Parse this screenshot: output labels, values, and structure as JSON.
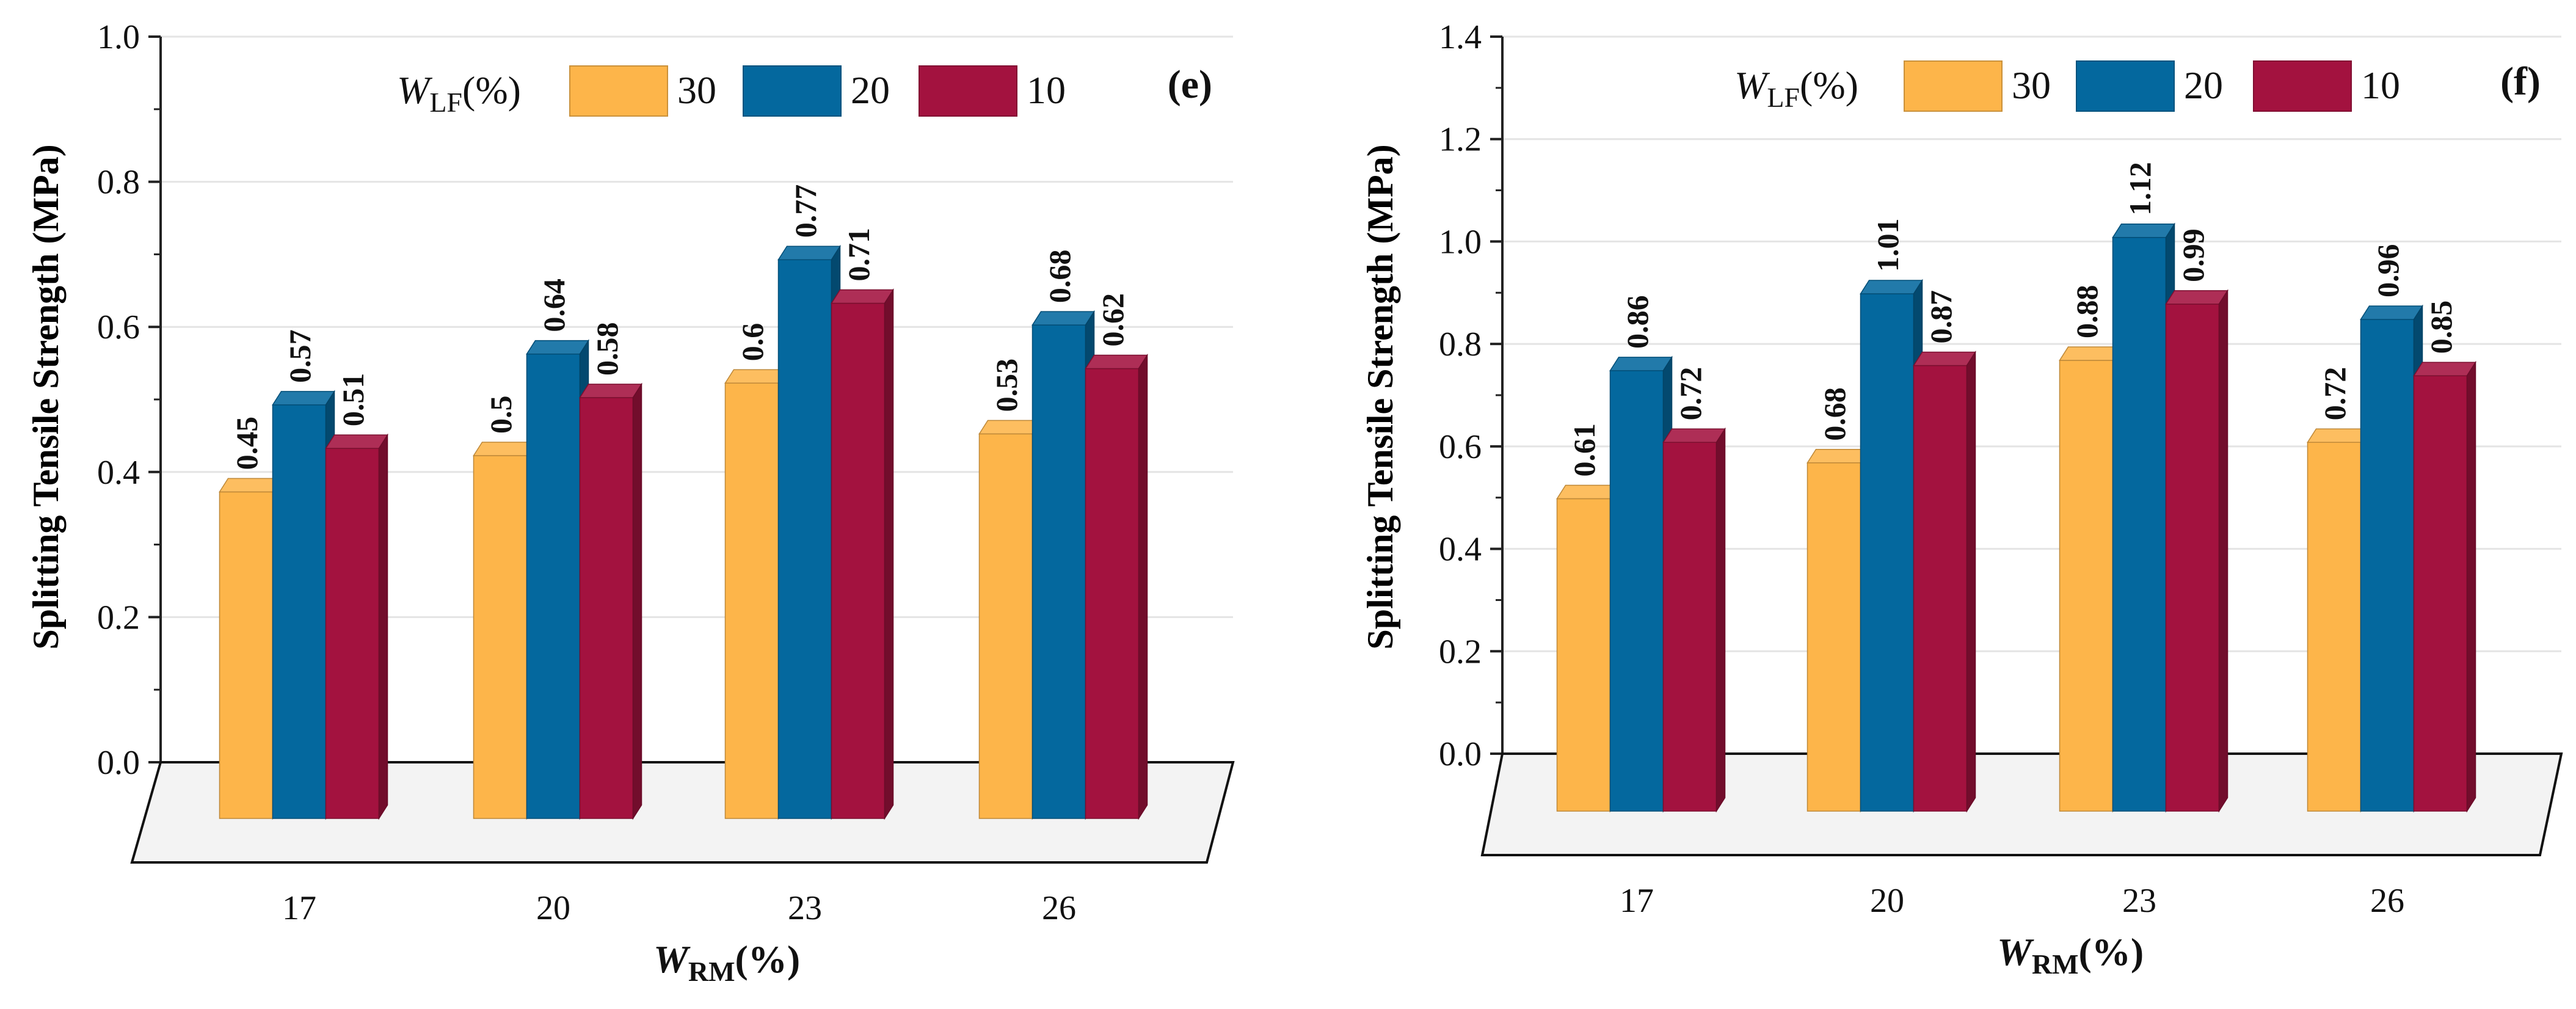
{
  "colors": {
    "series_30": "#FDB54A",
    "series_20": "#04689E",
    "series_10": "#A3123F",
    "floor": "#F3F3F3",
    "grid": "#E4E4E4"
  },
  "chart_data": [
    {
      "type": "bar",
      "panel": "(e)",
      "title": "",
      "ylabel": "Splitting Tensile Strength (MPa)",
      "xlabel_main": "W",
      "xlabel_sub": "RM",
      "xlabel_unit": "(%)",
      "legend_title_main": "W",
      "legend_title_sub": "LF",
      "legend_title_unit": "(%)",
      "legend_position": "top",
      "categories": [
        "17",
        "20",
        "23",
        "26"
      ],
      "ylim": [
        0,
        1.0
      ],
      "yticks": [
        "0.0",
        "0.2",
        "0.4",
        "0.6",
        "0.8",
        "1.0"
      ],
      "series": [
        {
          "name": "30",
          "values": [
            0.45,
            0.5,
            0.6,
            0.53
          ],
          "labels": [
            "0.45",
            "0.5",
            "0.6",
            "0.53"
          ]
        },
        {
          "name": "20",
          "values": [
            0.57,
            0.64,
            0.77,
            0.68
          ],
          "labels": [
            "0.57",
            "0.64",
            "0.77",
            "0.68"
          ]
        },
        {
          "name": "10",
          "values": [
            0.51,
            0.58,
            0.71,
            0.62
          ],
          "labels": [
            "0.51",
            "0.58",
            "0.71",
            "0.62"
          ]
        }
      ]
    },
    {
      "type": "bar",
      "panel": "(f)",
      "title": "",
      "ylabel": "Splitting Tensile Strength (MPa)",
      "xlabel_main": "W",
      "xlabel_sub": "RM",
      "xlabel_unit": "(%)",
      "legend_title_main": "W",
      "legend_title_sub": "LF",
      "legend_title_unit": "(%)",
      "legend_position": "top",
      "categories": [
        "17",
        "20",
        "23",
        "26"
      ],
      "ylim": [
        0,
        1.4
      ],
      "yticks": [
        "0.0",
        "0.2",
        "0.4",
        "0.6",
        "0.8",
        "1.0",
        "1.2",
        "1.4"
      ],
      "series": [
        {
          "name": "30",
          "values": [
            0.61,
            0.68,
            0.88,
            0.72
          ],
          "labels": [
            "0.61",
            "0.68",
            "0.88",
            "0.72"
          ]
        },
        {
          "name": "20",
          "values": [
            0.86,
            1.01,
            1.12,
            0.96
          ],
          "labels": [
            "0.86",
            "1.01",
            "1.12",
            "0.96"
          ]
        },
        {
          "name": "10",
          "values": [
            0.72,
            0.87,
            0.99,
            0.85
          ],
          "labels": [
            "0.72",
            "0.87",
            "0.99",
            "0.85"
          ]
        }
      ]
    }
  ]
}
